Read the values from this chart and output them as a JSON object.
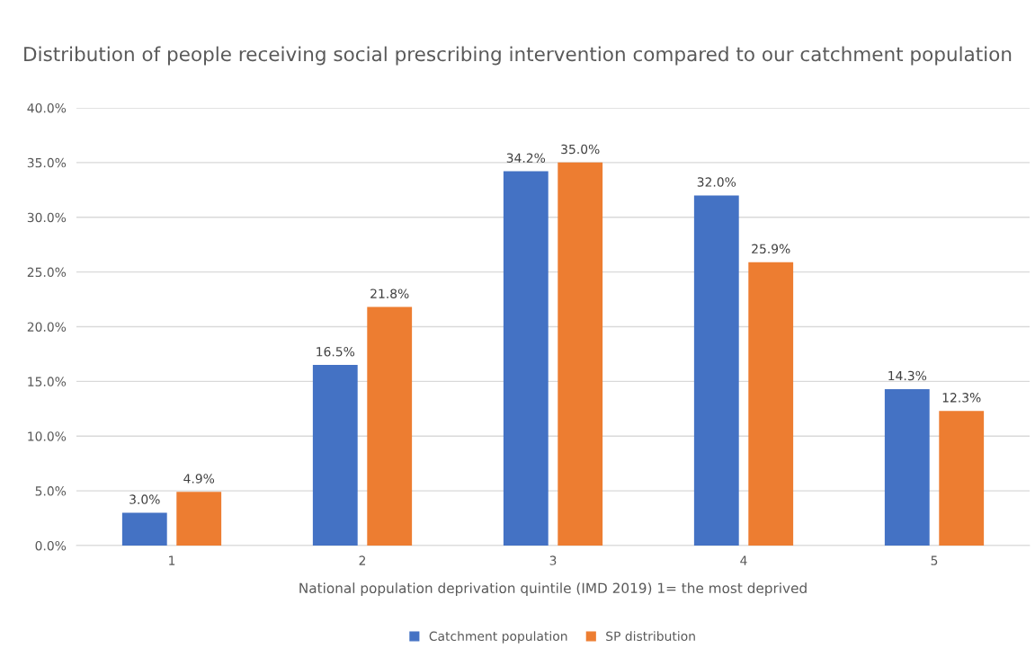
{
  "chart_data": {
    "type": "bar",
    "title": "Distribution of people receiving social prescribing intervention compared to our catchment population",
    "xlabel": "National population deprivation quintile (IMD 2019) 1= the most deprived",
    "categories": [
      "1",
      "2",
      "3",
      "4",
      "5"
    ],
    "series": [
      {
        "name": "Catchment population",
        "color": "#4472c4",
        "values": [
          3.0,
          16.5,
          34.2,
          32.0,
          14.3
        ],
        "value_labels": [
          "3.0%",
          "16.5%",
          "34.2%",
          "32.0%",
          "14.3%"
        ]
      },
      {
        "name": "SP distribution",
        "color": "#ed7d31",
        "values": [
          4.9,
          21.8,
          35.0,
          25.9,
          12.3
        ],
        "value_labels": [
          "4.9%",
          "21.8%",
          "35.0%",
          "25.9%",
          "12.3%"
        ]
      }
    ],
    "ylim": [
      0,
      40
    ],
    "yticks": [
      {
        "value": 0,
        "label": "0.0%"
      },
      {
        "value": 5,
        "label": "5.0%"
      },
      {
        "value": 10,
        "label": "10.0%"
      },
      {
        "value": 15,
        "label": "15.0%"
      },
      {
        "value": 20,
        "label": "20.0%"
      },
      {
        "value": 25,
        "label": "25.0%"
      },
      {
        "value": 30,
        "label": "30.0%"
      },
      {
        "value": 35,
        "label": "35.0%"
      },
      {
        "value": 40,
        "label": "40.0%"
      }
    ],
    "grid": "y",
    "legend": "bottom"
  }
}
